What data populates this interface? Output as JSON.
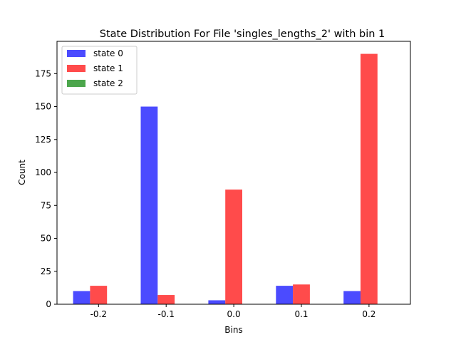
{
  "chart_data": {
    "type": "bar",
    "title": "State Distribution For File 'singles_lengths_2' with bin 1",
    "xlabel": "Bins",
    "ylabel": "Count",
    "categories": [
      "-0.2",
      "-0.1",
      "0.0",
      "0.1",
      "0.2"
    ],
    "ylim": [
      0,
      199.5
    ],
    "yticks": [
      0,
      25,
      50,
      75,
      100,
      125,
      150,
      175
    ],
    "legend_position": "upper-left",
    "grid": false,
    "series": [
      {
        "name": "state 0",
        "color": "#4b4bff",
        "values": [
          10,
          150,
          3,
          14,
          10
        ]
      },
      {
        "name": "state 1",
        "color": "#ff4b4b",
        "values": [
          14,
          7,
          87,
          15,
          190
        ]
      },
      {
        "name": "state 2",
        "color": "#4ca64c",
        "values": [
          0,
          0,
          0,
          0,
          0
        ]
      }
    ]
  }
}
